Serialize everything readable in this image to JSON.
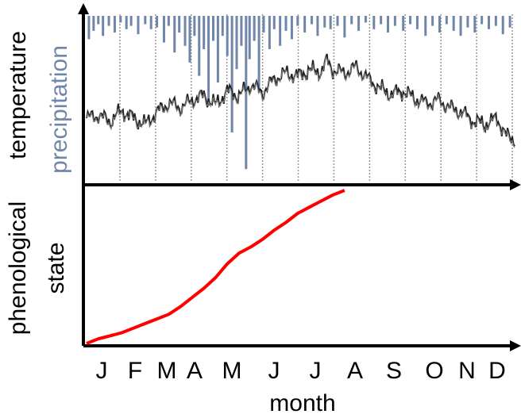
{
  "chart_data": [
    {
      "type": "line",
      "panel": "top",
      "ylabel_temperature": "temperature",
      "ylabel_precipitation": "precipitation",
      "precipitation_color": "#6f86a8",
      "temperature_color": "#222222",
      "grid": "vertical dotted month boundaries",
      "months": [
        "J",
        "F",
        "M",
        "A",
        "M",
        "J",
        "J",
        "A",
        "S",
        "O",
        "N",
        "D"
      ],
      "temperature_profile": [
        [
          0,
          0.4
        ],
        [
          10,
          0.42
        ],
        [
          20,
          0.38
        ],
        [
          30,
          0.45
        ],
        [
          40,
          0.4
        ],
        [
          50,
          0.36
        ],
        [
          60,
          0.44
        ],
        [
          70,
          0.5
        ],
        [
          80,
          0.47
        ],
        [
          90,
          0.52
        ],
        [
          100,
          0.55
        ],
        [
          110,
          0.49
        ],
        [
          120,
          0.58
        ],
        [
          130,
          0.55
        ],
        [
          140,
          0.62
        ],
        [
          150,
          0.57
        ],
        [
          160,
          0.66
        ],
        [
          170,
          0.7
        ],
        [
          180,
          0.68
        ],
        [
          190,
          0.72
        ],
        [
          200,
          0.71
        ],
        [
          205,
          0.78
        ],
        [
          210,
          0.72
        ],
        [
          220,
          0.7
        ],
        [
          230,
          0.74
        ],
        [
          240,
          0.66
        ],
        [
          250,
          0.6
        ],
        [
          260,
          0.56
        ],
        [
          270,
          0.58
        ],
        [
          280,
          0.53
        ],
        [
          290,
          0.5
        ],
        [
          300,
          0.52
        ],
        [
          310,
          0.47
        ],
        [
          320,
          0.44
        ],
        [
          330,
          0.38
        ],
        [
          340,
          0.36
        ],
        [
          350,
          0.4
        ],
        [
          358,
          0.28
        ],
        [
          365,
          0.26
        ]
      ],
      "precipitation_events": [
        [
          2,
          0.14
        ],
        [
          6,
          0.09
        ],
        [
          10,
          0.05
        ],
        [
          14,
          0.12
        ],
        [
          19,
          0.06
        ],
        [
          24,
          0.1
        ],
        [
          29,
          0.04
        ],
        [
          34,
          0.08
        ],
        [
          38,
          0.06
        ],
        [
          44,
          0.11
        ],
        [
          50,
          0.05
        ],
        [
          55,
          0.08
        ],
        [
          60,
          0.07
        ],
        [
          66,
          0.16
        ],
        [
          70,
          0.06
        ],
        [
          75,
          0.22
        ],
        [
          79,
          0.1
        ],
        [
          84,
          0.18
        ],
        [
          88,
          0.28
        ],
        [
          92,
          0.12
        ],
        [
          96,
          0.36
        ],
        [
          100,
          0.2
        ],
        [
          104,
          0.54
        ],
        [
          108,
          0.15
        ],
        [
          112,
          0.4
        ],
        [
          116,
          0.12
        ],
        [
          120,
          0.24
        ],
        [
          124,
          0.7
        ],
        [
          128,
          0.32
        ],
        [
          132,
          0.18
        ],
        [
          136,
          0.92
        ],
        [
          139,
          0.26
        ],
        [
          143,
          0.15
        ],
        [
          147,
          0.46
        ],
        [
          151,
          0.1
        ],
        [
          156,
          0.2
        ],
        [
          160,
          0.08
        ],
        [
          165,
          0.18
        ],
        [
          170,
          0.09
        ],
        [
          175,
          0.14
        ],
        [
          180,
          0.06
        ],
        [
          186,
          0.1
        ],
        [
          192,
          0.05
        ],
        [
          197,
          0.12
        ],
        [
          203,
          0.07
        ],
        [
          208,
          0.08
        ],
        [
          214,
          0.06
        ],
        [
          220,
          0.13
        ],
        [
          226,
          0.05
        ],
        [
          232,
          0.09
        ],
        [
          238,
          0.04
        ],
        [
          245,
          0.08
        ],
        [
          251,
          0.05
        ],
        [
          257,
          0.1
        ],
        [
          263,
          0.06
        ],
        [
          270,
          0.09
        ],
        [
          276,
          0.05
        ],
        [
          282,
          0.08
        ],
        [
          289,
          0.12
        ],
        [
          295,
          0.06
        ],
        [
          301,
          0.1
        ],
        [
          307,
          0.05
        ],
        [
          313,
          0.09
        ],
        [
          319,
          0.12
        ],
        [
          325,
          0.07
        ],
        [
          331,
          0.1
        ],
        [
          337,
          0.05
        ],
        [
          343,
          0.08
        ],
        [
          349,
          0.06
        ],
        [
          355,
          0.11
        ],
        [
          361,
          0.07
        ]
      ]
    },
    {
      "type": "line",
      "panel": "bottom",
      "xlabel": "month",
      "ylabel_line1": "phenological",
      "ylabel_line2": "state",
      "series_color": "#ff0000",
      "categories": [
        "J",
        "F",
        "M",
        "A",
        "M",
        "J",
        "J",
        "A",
        "S",
        "O",
        "N",
        "D"
      ],
      "x": [
        0,
        10,
        20,
        30,
        40,
        50,
        60,
        70,
        80,
        90,
        100,
        110,
        120,
        130,
        140,
        150,
        160,
        170,
        180,
        190,
        200,
        210,
        220
      ],
      "values": [
        0.0,
        0.03,
        0.05,
        0.07,
        0.1,
        0.13,
        0.16,
        0.19,
        0.24,
        0.3,
        0.36,
        0.43,
        0.52,
        0.59,
        0.63,
        0.68,
        0.74,
        0.79,
        0.85,
        0.89,
        0.93,
        0.97,
        1.0
      ]
    }
  ]
}
